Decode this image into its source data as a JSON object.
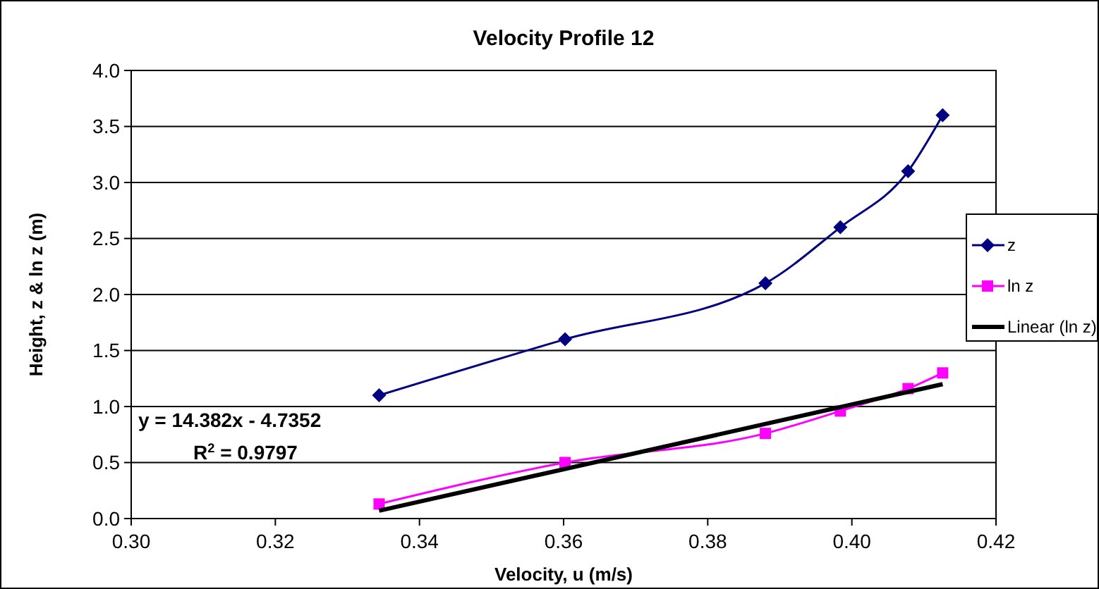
{
  "chart_data": {
    "type": "line",
    "title": "Velocity Profile 12",
    "xlabel": "Velocity, u (m/s)",
    "ylabel": "Height, z & ln z (m)",
    "x": [
      0.3344,
      0.3602,
      0.388,
      0.3984,
      0.4078,
      0.4126
    ],
    "series": [
      {
        "name": "z",
        "color": "#000080",
        "marker": "diamond",
        "values": [
          1.1,
          1.6,
          2.1,
          2.6,
          3.1,
          3.6
        ]
      },
      {
        "name": "ln z",
        "color": "#ff00ff",
        "marker": "square",
        "values": [
          0.13,
          0.5,
          0.76,
          0.96,
          1.16,
          1.3
        ]
      },
      {
        "name": "Linear (ln z)",
        "color": "#000000",
        "marker": "none",
        "x": [
          0.3344,
          0.4126
        ],
        "values": [
          0.07,
          1.2
        ]
      }
    ],
    "annotations": [
      "y = 14.382x - 4.7352",
      "R$^{2}$ = 0.9797"
    ],
    "xlim": [
      0.3,
      0.42
    ],
    "xticks": [
      {
        "value": 0.3,
        "label": "0.30"
      },
      0.32,
      0.34,
      0.36,
      0.38,
      {
        "value": 0.4,
        "label": "0.40"
      },
      0.42
    ],
    "ylim": [
      0,
      4
    ],
    "yticks": [
      {
        "value": 0,
        "label": "0.0"
      },
      0.5,
      {
        "value": 1,
        "label": "1.0"
      },
      1.5,
      {
        "value": 2,
        "label": "2.0"
      },
      2.5,
      {
        "value": 3,
        "label": "3.0"
      },
      3.5,
      {
        "value": 4,
        "label": "4.0"
      }
    ],
    "grid": "y",
    "legend": "right"
  }
}
